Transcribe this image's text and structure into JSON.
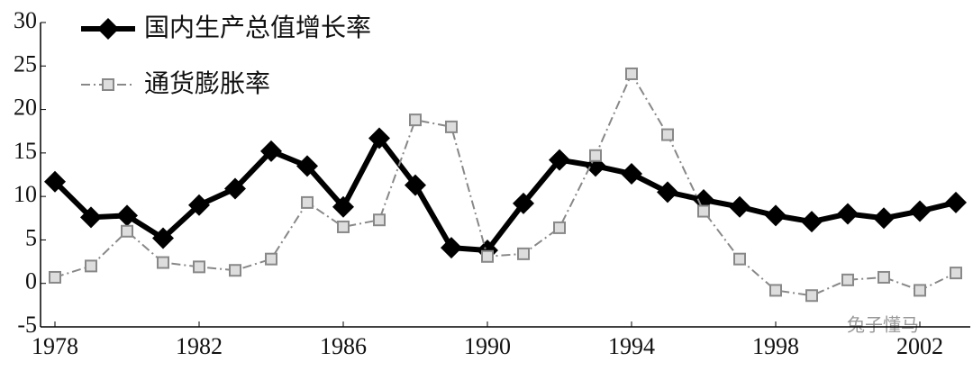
{
  "chart_data": {
    "type": "line",
    "x": [
      1978,
      1979,
      1980,
      1981,
      1982,
      1983,
      1984,
      1985,
      1986,
      1987,
      1988,
      1989,
      1990,
      1991,
      1992,
      1993,
      1994,
      1995,
      1996,
      1997,
      1998,
      1999,
      2000,
      2001,
      2002,
      2003
    ],
    "series": [
      {
        "name": "国内生产总值增长率",
        "color": "#000000",
        "style": "solid",
        "marker": "diamond",
        "values": [
          11.7,
          7.6,
          7.8,
          5.2,
          9.0,
          10.9,
          15.2,
          13.5,
          8.8,
          16.7,
          11.3,
          4.1,
          3.8,
          9.2,
          14.2,
          13.5,
          12.6,
          10.5,
          9.6,
          8.8,
          7.8,
          7.1,
          8.0,
          7.5,
          8.3,
          9.3
        ]
      },
      {
        "name": "通货膨胀率",
        "color": "#888888",
        "style": "dashdot",
        "marker": "square",
        "values": [
          0.7,
          2.0,
          6.0,
          2.4,
          1.9,
          1.5,
          2.8,
          9.3,
          6.5,
          7.3,
          18.8,
          18.0,
          3.1,
          3.4,
          6.4,
          14.7,
          24.1,
          17.1,
          8.3,
          2.8,
          -0.8,
          -1.4,
          0.4,
          0.7,
          -0.8,
          1.2
        ]
      }
    ],
    "xlim": [
      1977.6,
      2003.4
    ],
    "xticks": [
      1978,
      1982,
      1986,
      1990,
      1994,
      1998,
      2002
    ],
    "ylim": [
      -5,
      30
    ],
    "yticks": [
      -5,
      0,
      5,
      10,
      15,
      20,
      25,
      30
    ],
    "legend": "upper-left",
    "grid": false,
    "watermark": "兔子懂马"
  }
}
